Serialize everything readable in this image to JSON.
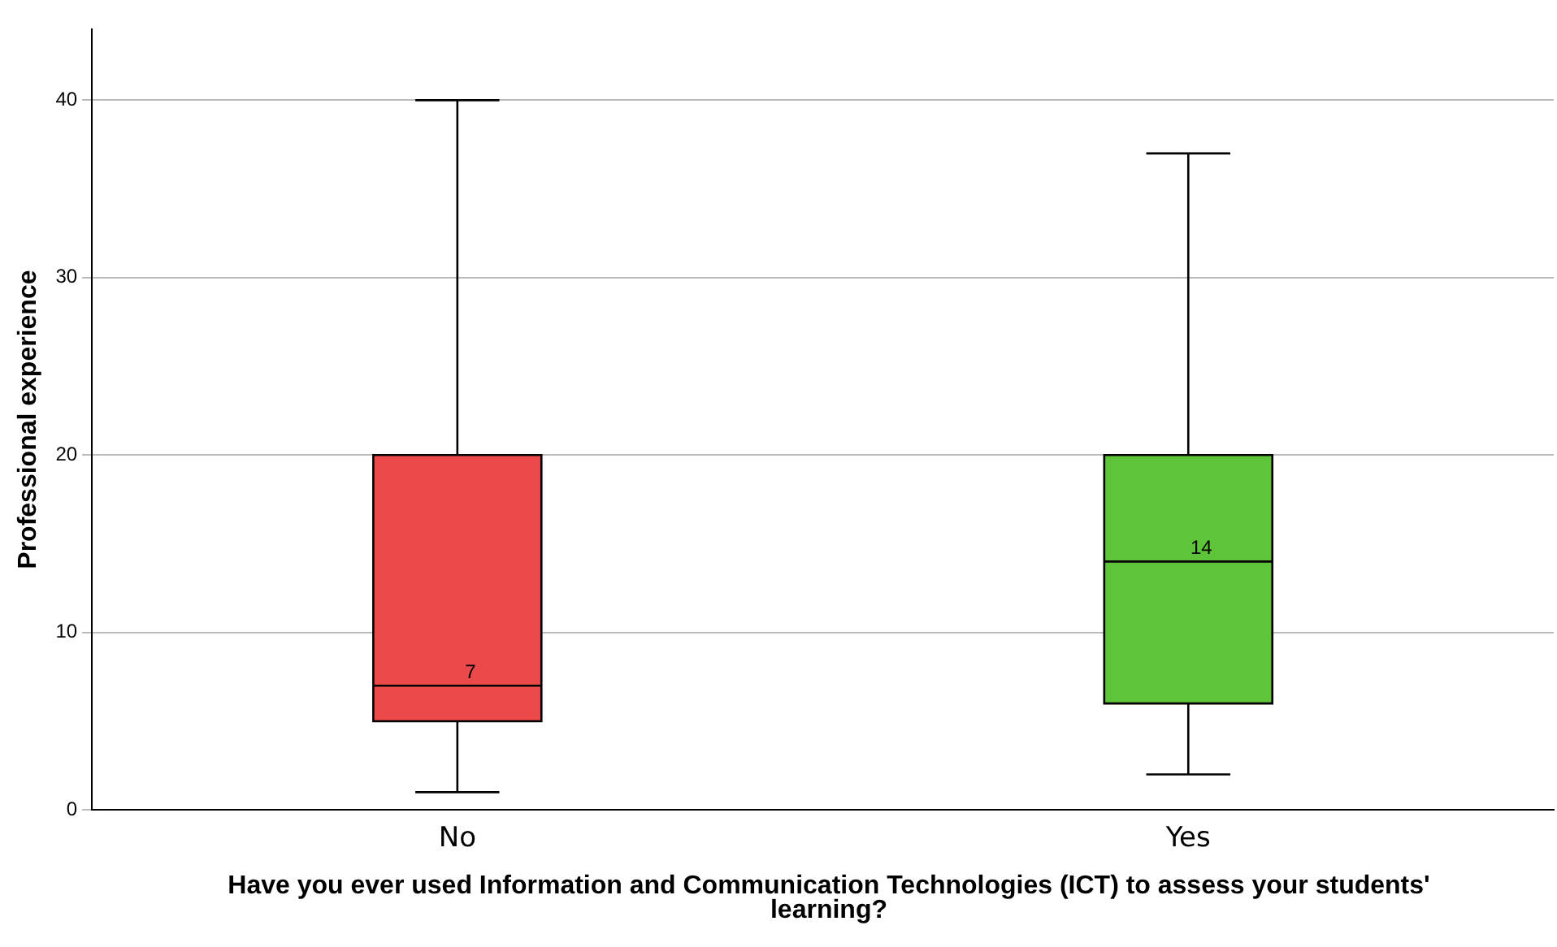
{
  "chart_data": {
    "type": "box",
    "xlabel": "Have you ever used Information and Communication Technologies (ICT) to assess your students' learning?",
    "ylabel": "Professional experience",
    "categories": [
      "No",
      "Yes"
    ],
    "boxes": [
      {
        "low": 1,
        "q1": 5,
        "median": 7,
        "q3": 20,
        "high": 40
      },
      {
        "low": 2,
        "q1": 6,
        "median": 14,
        "q3": 20,
        "high": 37
      }
    ],
    "colors": [
      "#ec4a4a",
      "#5ec43a"
    ],
    "ylim": [
      0,
      44
    ],
    "yticks": [
      0,
      10,
      20,
      30,
      40
    ],
    "grid": "y",
    "annotations": [
      {
        "text": "7",
        "x": "No",
        "y": 7
      },
      {
        "text": "14",
        "x": "Yes",
        "y": 14
      }
    ]
  }
}
